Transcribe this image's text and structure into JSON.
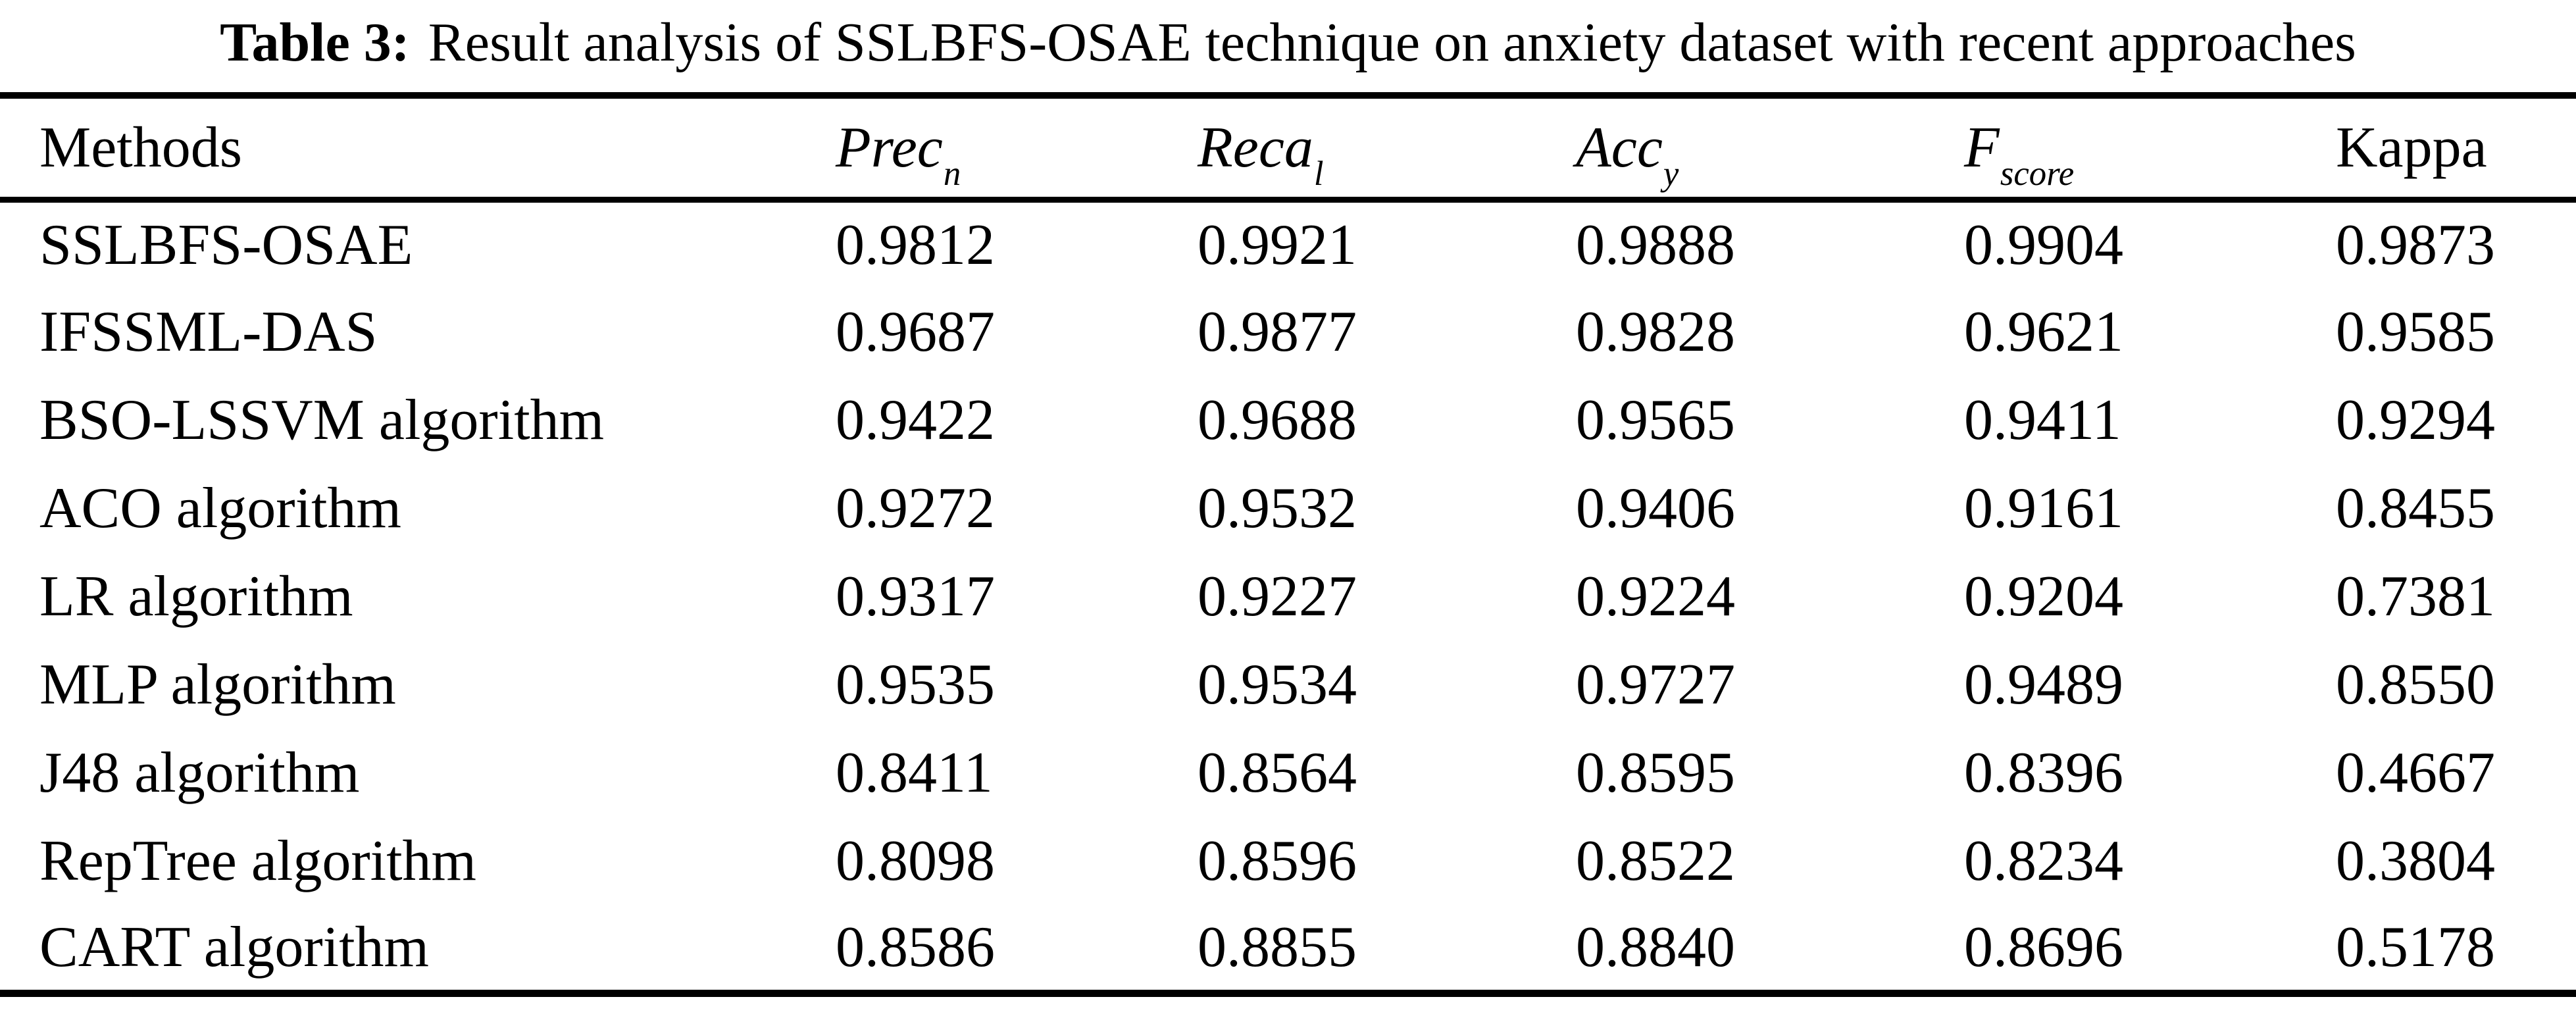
{
  "caption": {
    "label": "Table 3:",
    "text": "Result analysis of SSLBFS-OSAE technique on anxiety dataset with recent approaches"
  },
  "table": {
    "columns": [
      {
        "label": "Methods",
        "sub": "",
        "italic": false
      },
      {
        "label": "Prec",
        "sub": "n",
        "italic": true
      },
      {
        "label": "Reca",
        "sub": "l",
        "italic": true
      },
      {
        "label": "Acc",
        "sub": "y",
        "italic": true
      },
      {
        "label": "F",
        "sub": "score",
        "italic": true
      },
      {
        "label": "Kappa",
        "sub": "",
        "italic": false
      }
    ],
    "rows": [
      {
        "method": "SSLBFS-OSAE",
        "values": [
          "0.9812",
          "0.9921",
          "0.9888",
          "0.9904",
          "0.9873"
        ]
      },
      {
        "method": "IFSSML-DAS",
        "values": [
          "0.9687",
          "0.9877",
          "0.9828",
          "0.9621",
          "0.9585"
        ]
      },
      {
        "method": "BSO-LSSVM algorithm",
        "values": [
          "0.9422",
          "0.9688",
          "0.9565",
          "0.9411",
          "0.9294"
        ]
      },
      {
        "method": "ACO algorithm",
        "values": [
          "0.9272",
          "0.9532",
          "0.9406",
          "0.9161",
          "0.8455"
        ]
      },
      {
        "method": "LR algorithm",
        "values": [
          "0.9317",
          "0.9227",
          "0.9224",
          "0.9204",
          "0.7381"
        ]
      },
      {
        "method": "MLP algorithm",
        "values": [
          "0.9535",
          "0.9534",
          "0.9727",
          "0.9489",
          "0.8550"
        ]
      },
      {
        "method": "J48 algorithm",
        "values": [
          "0.8411",
          "0.8564",
          "0.8595",
          "0.8396",
          "0.4667"
        ]
      },
      {
        "method": "RepTree algorithm",
        "values": [
          "0.8098",
          "0.8596",
          "0.8522",
          "0.8234",
          "0.3804"
        ]
      },
      {
        "method": "CART algorithm",
        "values": [
          "0.8586",
          "0.8855",
          "0.8840",
          "0.8696",
          "0.5178"
        ]
      }
    ]
  },
  "chart_data": {
    "type": "table",
    "title": "Table 3: Result analysis of SSLBFS-OSAE technique on anxiety dataset with recent approaches",
    "categories": [
      "SSLBFS-OSAE",
      "IFSSML-DAS",
      "BSO-LSSVM algorithm",
      "ACO algorithm",
      "LR algorithm",
      "MLP algorithm",
      "J48 algorithm",
      "RepTree algorithm",
      "CART algorithm"
    ],
    "series": [
      {
        "name": "Prec_n",
        "values": [
          0.9812,
          0.9687,
          0.9422,
          0.9272,
          0.9317,
          0.9535,
          0.8411,
          0.8098,
          0.8586
        ]
      },
      {
        "name": "Reca_l",
        "values": [
          0.9921,
          0.9877,
          0.9688,
          0.9532,
          0.9227,
          0.9534,
          0.8564,
          0.8596,
          0.8855
        ]
      },
      {
        "name": "Acc_y",
        "values": [
          0.9888,
          0.9828,
          0.9565,
          0.9406,
          0.9224,
          0.9727,
          0.8595,
          0.8522,
          0.884
        ]
      },
      {
        "name": "F_score",
        "values": [
          0.9904,
          0.9621,
          0.9411,
          0.9161,
          0.9204,
          0.9489,
          0.8396,
          0.8234,
          0.8696
        ]
      },
      {
        "name": "Kappa",
        "values": [
          0.9873,
          0.9585,
          0.9294,
          0.8455,
          0.7381,
          0.855,
          0.4667,
          0.3804,
          0.5178
        ]
      }
    ]
  }
}
